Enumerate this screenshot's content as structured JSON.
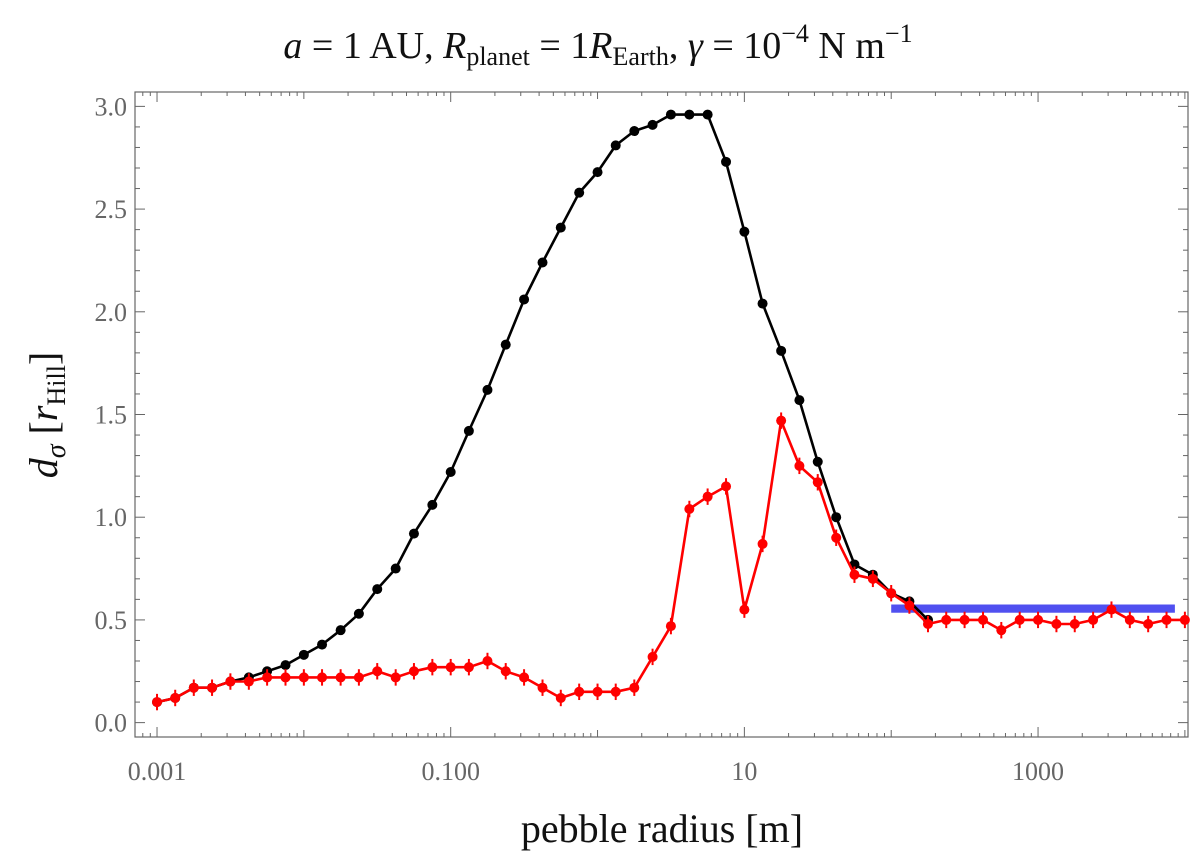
{
  "chart_data": {
    "type": "line",
    "title": "a = 1 AU, R_planet = 1R_Earth, γ = 10^-4 N m^-1",
    "title_parts": {
      "a": "a",
      "eq1": " = 1 AU, ",
      "R": "R",
      "R_sub": "planet",
      "eq2": " = 1",
      "R2": "R",
      "R2_sub": "Earth",
      "comma": ", ",
      "gamma": "γ",
      "eq3": " = 10",
      "exp": "−4",
      "unit": " N m",
      "unit_exp": "−1"
    },
    "xlabel": "pebble radius [m]",
    "ylabel": "d_σ [r_Hill]",
    "ylabel_parts": {
      "d": "d",
      "d_sub": "σ",
      "bracket_open": "[",
      "r": "r",
      "r_sub": "Hill",
      "bracket_close": "]"
    },
    "x_scale": "log",
    "xlim": [
      0.000708,
      10500
    ],
    "ylim": [
      -0.07,
      3.07
    ],
    "x_ticks": [
      0.001,
      0.1,
      10,
      1000
    ],
    "x_tick_labels": [
      "0.001",
      "0.100",
      "10",
      "1000"
    ],
    "y_ticks": [
      0,
      0.5,
      1,
      1.5,
      2,
      2.5,
      3
    ],
    "y_tick_labels": [
      "0.0",
      "0.5",
      "1.0",
      "1.5",
      "2.0",
      "2.5",
      "3.0"
    ],
    "colors": {
      "black": "#000000",
      "red": "#ff0000",
      "blue": "#5050f0",
      "axis": "#666666"
    },
    "series": [
      {
        "name": "black",
        "color": "#000000",
        "x": [
          0.001,
          0.00133,
          0.00178,
          0.00237,
          0.00316,
          0.00422,
          0.00562,
          0.0075,
          0.01,
          0.0133,
          0.0178,
          0.0237,
          0.0316,
          0.0422,
          0.0562,
          0.075,
          0.1,
          0.133,
          0.178,
          0.237,
          0.316,
          0.422,
          0.562,
          0.75,
          1.0,
          1.33,
          1.78,
          2.37,
          3.16,
          4.22,
          5.62,
          7.5,
          10,
          13.3,
          17.8,
          23.7,
          31.6,
          42.2,
          56.2,
          75,
          100,
          133,
          178
        ],
        "y": [
          0.1,
          0.12,
          0.17,
          0.17,
          0.2,
          0.22,
          0.25,
          0.28,
          0.33,
          0.38,
          0.45,
          0.53,
          0.65,
          0.75,
          0.92,
          1.06,
          1.22,
          1.42,
          1.62,
          1.84,
          2.06,
          2.24,
          2.41,
          2.58,
          2.68,
          2.81,
          2.88,
          2.91,
          2.96,
          2.96,
          2.96,
          2.73,
          2.39,
          2.04,
          1.81,
          1.57,
          1.27,
          1.0,
          0.77,
          0.72,
          0.63,
          0.59,
          0.5
        ]
      },
      {
        "name": "red",
        "color": "#ff0000",
        "error": 0.04,
        "x": [
          0.001,
          0.00133,
          0.00178,
          0.00237,
          0.00316,
          0.00422,
          0.00562,
          0.0075,
          0.01,
          0.0133,
          0.0178,
          0.0237,
          0.0316,
          0.0422,
          0.0562,
          0.075,
          0.1,
          0.133,
          0.178,
          0.237,
          0.316,
          0.422,
          0.562,
          0.75,
          1.0,
          1.33,
          1.78,
          2.37,
          3.16,
          4.22,
          5.62,
          7.5,
          10,
          13.3,
          17.8,
          23.7,
          31.6,
          42.2,
          56.2,
          75,
          100,
          133,
          178,
          237,
          316,
          422,
          562,
          750,
          1000,
          1334,
          1778,
          2371,
          3162,
          4217,
          5623,
          7499,
          10000
        ],
        "y": [
          0.1,
          0.12,
          0.17,
          0.17,
          0.2,
          0.2,
          0.22,
          0.22,
          0.22,
          0.22,
          0.22,
          0.22,
          0.25,
          0.22,
          0.25,
          0.27,
          0.27,
          0.27,
          0.3,
          0.25,
          0.22,
          0.17,
          0.12,
          0.15,
          0.15,
          0.15,
          0.17,
          0.32,
          0.47,
          1.04,
          1.1,
          1.15,
          0.55,
          0.87,
          1.47,
          1.25,
          1.17,
          0.9,
          0.72,
          0.7,
          0.63,
          0.57,
          0.48,
          0.5,
          0.5,
          0.5,
          0.45,
          0.5,
          0.5,
          0.48,
          0.48,
          0.5,
          0.55,
          0.5,
          0.48,
          0.5,
          0.5
        ]
      }
    ],
    "band": {
      "name": "blue",
      "color": "#5050f0",
      "x_start": 100,
      "x_end": 10000,
      "y_low": 0.535,
      "y_high": 0.575
    }
  }
}
